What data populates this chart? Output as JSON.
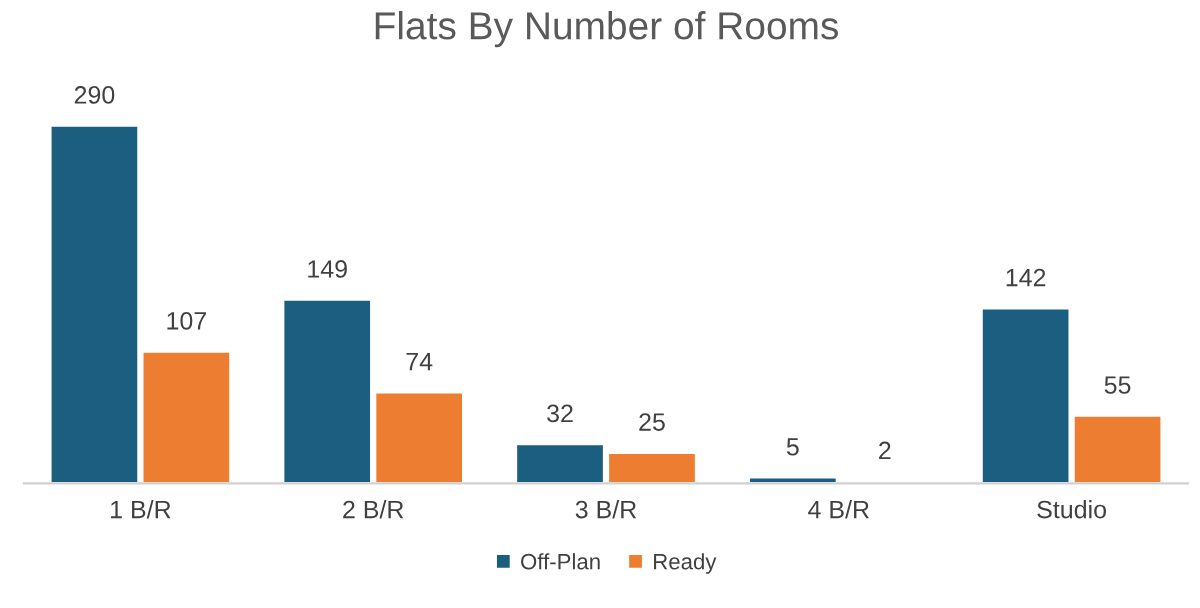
{
  "chart_data": {
    "type": "bar",
    "title": "Flats By Number of Rooms",
    "categories": [
      "1 B/R",
      "2 B/R",
      "3 B/R",
      "4 B/R",
      "Studio"
    ],
    "series": [
      {
        "name": "Off-Plan",
        "color": "#1b5e80",
        "values": [
          290,
          149,
          32,
          5,
          142
        ]
      },
      {
        "name": "Ready",
        "color": "#ed7d31",
        "values": [
          107,
          74,
          25,
          2,
          55
        ]
      }
    ],
    "data_labels": true,
    "legend": "bottom",
    "grid": false
  }
}
